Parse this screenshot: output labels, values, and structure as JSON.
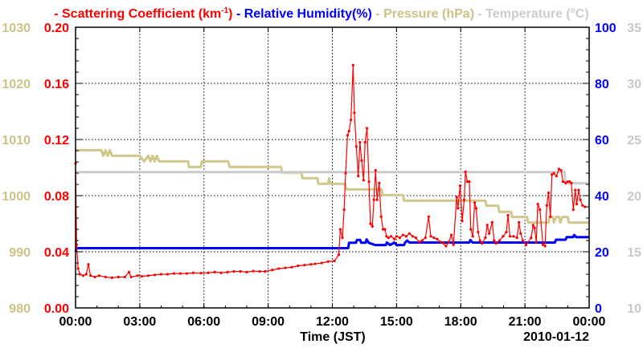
{
  "chart_data": {
    "type": "line",
    "title_parts": [
      {
        "dash": "-",
        "text": "Scattering Coefficient (km",
        "sup": "-1",
        "tail": ")",
        "color": "#ff0000"
      },
      {
        "dash": "-",
        "text": "Relative Humidity(%)",
        "color": "#0000ff"
      },
      {
        "dash": "-",
        "text": "Pressure (hPa)",
        "color": "#cbc386"
      },
      {
        "dash": "-",
        "text": "Temperature (",
        "sup": "o",
        "tail": "C)",
        "color": "#cccccc"
      }
    ],
    "xlabel": "Time (JST)",
    "date_label": "2010-01-12",
    "x_range_hours": [
      0,
      24
    ],
    "x_ticks": [
      "00:00",
      "03:00",
      "06:00",
      "09:00",
      "12:00",
      "15:00",
      "18:00",
      "21:00",
      "00:00"
    ],
    "grid": true,
    "axes": {
      "scattering": {
        "side": "left-inner",
        "range": [
          0,
          0.2
        ],
        "ticks": [
          "0.00",
          "0.04",
          "0.08",
          "0.12",
          "0.16",
          "0.20"
        ],
        "color": "#ff0000"
      },
      "pressure": {
        "side": "left-outer",
        "range": [
          980,
          1030
        ],
        "ticks": [
          "980",
          "990",
          "1000",
          "1010",
          "1020",
          "1030"
        ],
        "color": "#cbc386"
      },
      "humidity": {
        "side": "right-inner",
        "range": [
          0,
          100
        ],
        "ticks": [
          "0",
          "20",
          "40",
          "60",
          "80",
          "100"
        ],
        "color": "#0000ff"
      },
      "temperature": {
        "side": "right-outer",
        "range": [
          10,
          35
        ],
        "ticks": [
          "10",
          "15",
          "20",
          "25",
          "30",
          "35"
        ],
        "color": "#c8c8c8"
      }
    },
    "series": [
      {
        "name": "Pressure",
        "axis": "pressure",
        "color": "#cfc88a",
        "step": true,
        "points": [
          [
            0,
            1008.1
          ],
          [
            1.2,
            1008.1
          ],
          [
            1.3,
            1007.1
          ],
          [
            1.4,
            1008.1
          ],
          [
            1.5,
            1007.1
          ],
          [
            1.6,
            1008.1
          ],
          [
            1.7,
            1007.1
          ],
          [
            3.0,
            1007.1
          ],
          [
            3.2,
            1006.1
          ],
          [
            3.4,
            1007.1
          ],
          [
            3.5,
            1006.1
          ],
          [
            3.6,
            1007.1
          ],
          [
            3.7,
            1006.1
          ],
          [
            3.8,
            1007.1
          ],
          [
            3.9,
            1006.1
          ],
          [
            5.26,
            1006.1
          ],
          [
            5.3,
            1005.1
          ],
          [
            5.85,
            1005.1
          ],
          [
            5.9,
            1006.1
          ],
          [
            7.13,
            1006.1
          ],
          [
            7.2,
            1005.1
          ],
          [
            9.6,
            1005.1
          ],
          [
            9.65,
            1004.1
          ],
          [
            10.55,
            1004.1
          ],
          [
            10.6,
            1003.1
          ],
          [
            11.3,
            1003.1
          ],
          [
            11.35,
            1002.1
          ],
          [
            11.8,
            1002.1
          ],
          [
            11.85,
            1003.1
          ],
          [
            11.9,
            1002.1
          ],
          [
            12.6,
            1002.1
          ],
          [
            12.65,
            1001.1
          ],
          [
            14.3,
            1001.1
          ],
          [
            14.35,
            1000.1
          ],
          [
            15.3,
            1000.1
          ],
          [
            15.35,
            999.1
          ],
          [
            19.15,
            999.1
          ],
          [
            19.2,
            998.2
          ],
          [
            19.75,
            998.2
          ],
          [
            19.8,
            997.1
          ],
          [
            20.35,
            997.1
          ],
          [
            20.4,
            996.2
          ],
          [
            21.1,
            996.2
          ],
          [
            21.15,
            995.2
          ],
          [
            22.1,
            995.2
          ],
          [
            22.15,
            996.2
          ],
          [
            22.3,
            996.2
          ],
          [
            22.35,
            995.2
          ],
          [
            22.45,
            996.2
          ],
          [
            22.6,
            996.2
          ],
          [
            22.65,
            995.2
          ],
          [
            22.75,
            996.2
          ],
          [
            23.0,
            996.2
          ],
          [
            23.05,
            995.2
          ],
          [
            24,
            995.2
          ]
        ]
      },
      {
        "name": "Temperature",
        "axis": "temperature",
        "color": "#cccccc",
        "step": true,
        "points": [
          [
            0,
            22.1
          ],
          [
            22.85,
            22.1
          ],
          [
            22.9,
            21.1
          ],
          [
            24,
            21.1
          ]
        ]
      },
      {
        "name": "Relative Humidity",
        "axis": "humidity",
        "color": "#0000ff",
        "step": true,
        "points": [
          [
            0,
            20
          ],
          [
            0.05,
            21.3
          ],
          [
            12.74,
            21.3
          ],
          [
            12.78,
            23.2
          ],
          [
            13.1,
            23.2
          ],
          [
            13.15,
            24.2
          ],
          [
            13.3,
            24.2
          ],
          [
            13.35,
            23.2
          ],
          [
            13.55,
            23.2
          ],
          [
            13.6,
            24.4
          ],
          [
            13.7,
            23.2
          ],
          [
            14.0,
            22.4
          ],
          [
            14.5,
            22.4
          ],
          [
            14.55,
            23.3
          ],
          [
            14.7,
            22.4
          ],
          [
            14.9,
            23.3
          ],
          [
            15.0,
            22.4
          ],
          [
            15.35,
            22.4
          ],
          [
            15.4,
            23.3
          ],
          [
            15.5,
            24.0
          ],
          [
            15.6,
            23.3
          ],
          [
            18.4,
            23.3
          ],
          [
            18.45,
            24.2
          ],
          [
            18.55,
            23.3
          ],
          [
            22.4,
            23.3
          ],
          [
            22.45,
            24.3
          ],
          [
            22.9,
            24.3
          ],
          [
            22.95,
            25.2
          ],
          [
            23.25,
            25.2
          ],
          [
            23.3,
            26.0
          ],
          [
            23.4,
            25.2
          ],
          [
            24,
            25.2
          ]
        ]
      },
      {
        "name": "Scattering Coefficient",
        "axis": "scattering",
        "color": "#ff0000",
        "markers": true,
        "points": [
          [
            0,
            0.103
          ],
          [
            0.05,
            0.045
          ],
          [
            0.12,
            0.028
          ],
          [
            0.2,
            0.024
          ],
          [
            0.35,
            0.023
          ],
          [
            0.5,
            0.024
          ],
          [
            0.6,
            0.031
          ],
          [
            0.7,
            0.023
          ],
          [
            0.9,
            0.022
          ],
          [
            1.1,
            0.023
          ],
          [
            1.4,
            0.022
          ],
          [
            1.7,
            0.0215
          ],
          [
            2.0,
            0.022
          ],
          [
            2.3,
            0.022
          ],
          [
            2.5,
            0.0255
          ],
          [
            2.6,
            0.022
          ],
          [
            2.9,
            0.023
          ],
          [
            3.1,
            0.0225
          ],
          [
            3.4,
            0.023
          ],
          [
            3.7,
            0.0235
          ],
          [
            4.0,
            0.024
          ],
          [
            4.3,
            0.024
          ],
          [
            4.6,
            0.0245
          ],
          [
            4.9,
            0.0245
          ],
          [
            5.2,
            0.0245
          ],
          [
            5.5,
            0.025
          ],
          [
            5.86,
            0.0248
          ],
          [
            6.2,
            0.025
          ],
          [
            6.5,
            0.0255
          ],
          [
            6.8,
            0.025
          ],
          [
            7.1,
            0.0255
          ],
          [
            7.4,
            0.026
          ],
          [
            7.7,
            0.026
          ],
          [
            8.0,
            0.0255
          ],
          [
            8.3,
            0.0262
          ],
          [
            8.6,
            0.026
          ],
          [
            8.86,
            0.026
          ],
          [
            9.2,
            0.027
          ],
          [
            9.5,
            0.028
          ],
          [
            9.8,
            0.0285
          ],
          [
            10.1,
            0.029
          ],
          [
            10.4,
            0.03
          ],
          [
            10.7,
            0.0305
          ],
          [
            11.0,
            0.031
          ],
          [
            11.2,
            0.0314
          ],
          [
            11.5,
            0.032
          ],
          [
            11.8,
            0.033
          ],
          [
            12.1,
            0.0335
          ],
          [
            12.3,
            0.038
          ],
          [
            12.37,
            0.056
          ],
          [
            12.47,
            0.05
          ],
          [
            12.55,
            0.07
          ],
          [
            12.62,
            0.096
          ],
          [
            12.71,
            0.123
          ],
          [
            12.78,
            0.126
          ],
          [
            12.87,
            0.134
          ],
          [
            12.97,
            0.173
          ],
          [
            13.03,
            0.139
          ],
          [
            13.12,
            0.115
          ],
          [
            13.21,
            0.094
          ],
          [
            13.29,
            0.118
          ],
          [
            13.37,
            0.105
          ],
          [
            13.46,
            0.091
          ],
          [
            13.53,
            0.118
          ],
          [
            13.62,
            0.128
          ],
          [
            13.71,
            0.09
          ],
          [
            13.78,
            0.06
          ],
          [
            13.87,
            0.058
          ],
          [
            13.94,
            0.077
          ],
          [
            14.02,
            0.098
          ],
          [
            14.09,
            0.077
          ],
          [
            14.19,
            0.089
          ],
          [
            14.28,
            0.065
          ],
          [
            14.37,
            0.056
          ],
          [
            14.46,
            0.056
          ],
          [
            14.53,
            0.051
          ],
          [
            14.62,
            0.05
          ],
          [
            14.75,
            0.051
          ],
          [
            14.9,
            0.049
          ],
          [
            15.0,
            0.051
          ],
          [
            15.15,
            0.05
          ],
          [
            15.3,
            0.052
          ],
          [
            15.45,
            0.051
          ],
          [
            15.6,
            0.053
          ],
          [
            15.75,
            0.051
          ],
          [
            15.9,
            0.05
          ],
          [
            16.05,
            0.047
          ],
          [
            16.2,
            0.048
          ],
          [
            16.35,
            0.05
          ],
          [
            16.5,
            0.065
          ],
          [
            16.6,
            0.051
          ],
          [
            16.75,
            0.05
          ],
          [
            16.9,
            0.049
          ],
          [
            17.05,
            0.047
          ],
          [
            17.2,
            0.046
          ],
          [
            17.31,
            0.044
          ],
          [
            17.45,
            0.047
          ],
          [
            17.56,
            0.052
          ],
          [
            17.66,
            0.045
          ],
          [
            17.81,
            0.079
          ],
          [
            17.87,
            0.071
          ],
          [
            17.97,
            0.087
          ],
          [
            18.07,
            0.062
          ],
          [
            18.16,
            0.077
          ],
          [
            18.22,
            0.097
          ],
          [
            18.31,
            0.09
          ],
          [
            18.4,
            0.09
          ],
          [
            18.47,
            0.056
          ],
          [
            18.56,
            0.051
          ],
          [
            18.65,
            0.075
          ],
          [
            18.72,
            0.071
          ],
          [
            18.81,
            0.054
          ],
          [
            18.9,
            0.048
          ],
          [
            19.0,
            0.046
          ],
          [
            19.15,
            0.05
          ],
          [
            19.24,
            0.059
          ],
          [
            19.33,
            0.053
          ],
          [
            19.47,
            0.061
          ],
          [
            19.56,
            0.048
          ],
          [
            19.65,
            0.046
          ],
          [
            19.81,
            0.048
          ],
          [
            19.98,
            0.051
          ],
          [
            20.13,
            0.054
          ],
          [
            20.21,
            0.066
          ],
          [
            20.3,
            0.051
          ],
          [
            20.47,
            0.051
          ],
          [
            20.63,
            0.05
          ],
          [
            20.72,
            0.061
          ],
          [
            20.8,
            0.053
          ],
          [
            20.9,
            0.048
          ],
          [
            21.06,
            0.045
          ],
          [
            21.29,
            0.05
          ],
          [
            21.38,
            0.059
          ],
          [
            21.45,
            0.057
          ],
          [
            21.53,
            0.047
          ],
          [
            21.6,
            0.074
          ],
          [
            21.7,
            0.07
          ],
          [
            21.84,
            0.045
          ],
          [
            21.94,
            0.044
          ],
          [
            22.02,
            0.073
          ],
          [
            22.1,
            0.082
          ],
          [
            22.19,
            0.065
          ],
          [
            22.26,
            0.095
          ],
          [
            22.35,
            0.096
          ],
          [
            22.47,
            0.094
          ],
          [
            22.59,
            0.099
          ],
          [
            22.69,
            0.098
          ],
          [
            22.78,
            0.09
          ],
          [
            22.9,
            0.089
          ],
          [
            23.0,
            0.09
          ],
          [
            23.09,
            0.09
          ],
          [
            23.17,
            0.089
          ],
          [
            23.26,
            0.07
          ],
          [
            23.35,
            0.084
          ],
          [
            23.42,
            0.074
          ],
          [
            23.51,
            0.084
          ],
          [
            23.59,
            0.077
          ],
          [
            23.69,
            0.073
          ],
          [
            23.8,
            0.072
          ]
        ]
      }
    ]
  }
}
